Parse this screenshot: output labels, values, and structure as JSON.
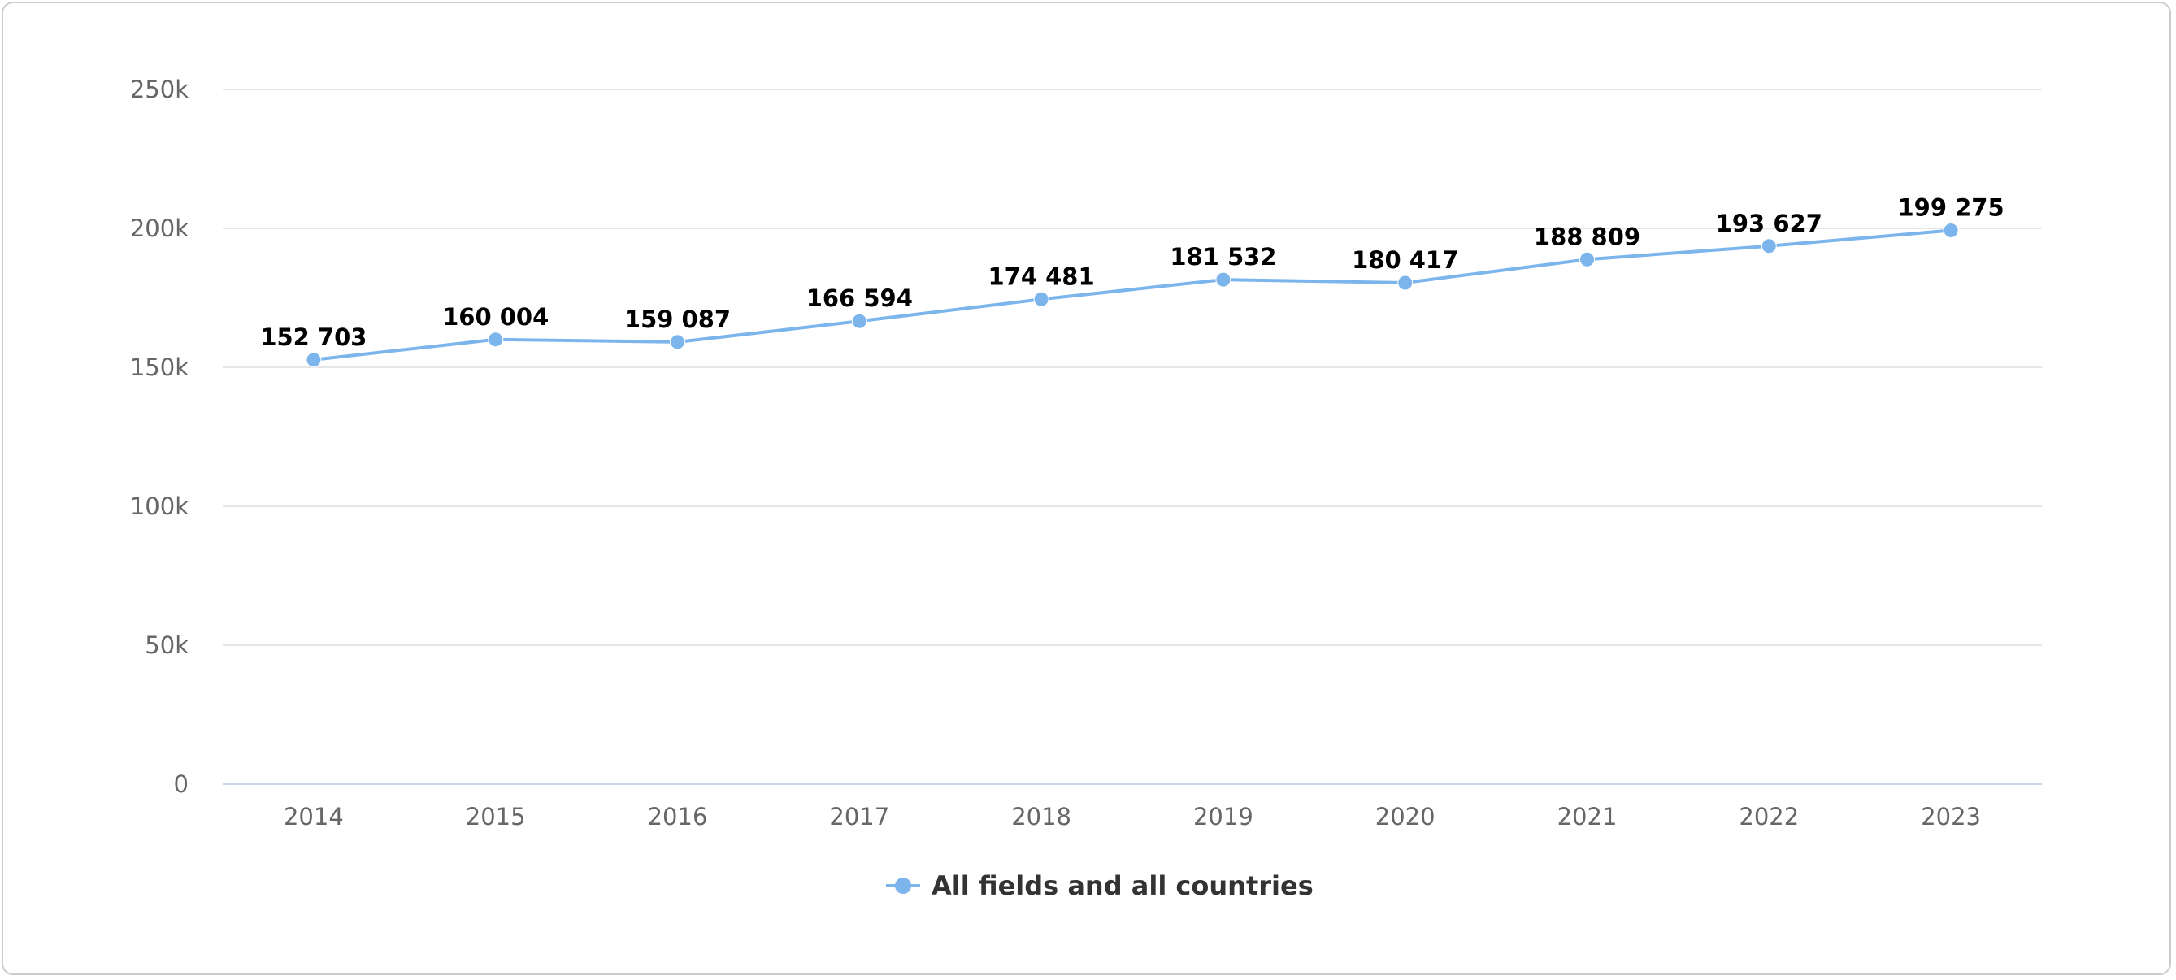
{
  "chart_data": {
    "type": "line",
    "x": [
      "2014",
      "2015",
      "2016",
      "2017",
      "2018",
      "2019",
      "2020",
      "2021",
      "2022",
      "2023"
    ],
    "series": [
      {
        "name": "All fields and all countries",
        "values": [
          152703,
          160004,
          159087,
          166594,
          174481,
          181532,
          180417,
          188809,
          193627,
          199275
        ],
        "labels": [
          "152 703",
          "160 004",
          "159 087",
          "166 594",
          "174 481",
          "181 532",
          "180 417",
          "188 809",
          "193 627",
          "199 275"
        ]
      }
    ],
    "yticks": [
      0,
      50000,
      100000,
      150000,
      200000,
      250000
    ],
    "ytick_labels": [
      "0",
      "50k",
      "100k",
      "150k",
      "200k",
      "250k"
    ],
    "ylim": [
      0,
      250000
    ],
    "grid": true,
    "legend": "bottom-center",
    "colors": {
      "series": "#7cb5ec",
      "grid": "#e6e6e6",
      "axis": "#ccd6eb"
    }
  }
}
